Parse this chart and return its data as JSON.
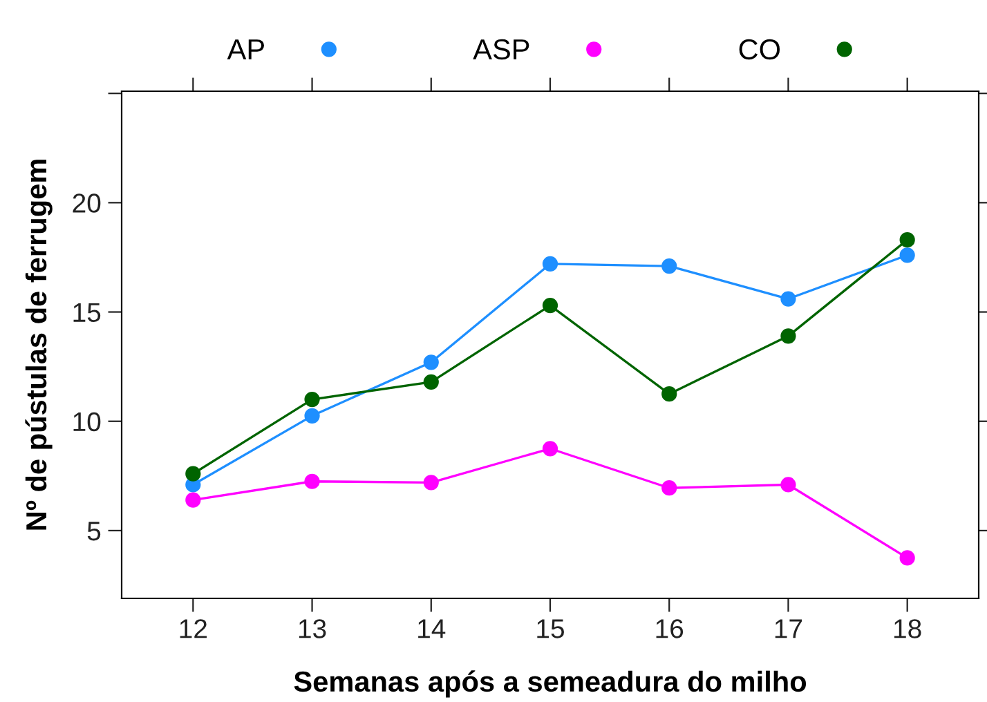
{
  "chart_data": {
    "type": "line",
    "xlabel": "Semanas após a semeadura do milho",
    "ylabel": "Nº de pústulas de ferrugem",
    "x": [
      12,
      13,
      14,
      15,
      16,
      17,
      18
    ],
    "series": [
      {
        "name": "AP",
        "color": "#1e8fff",
        "values": [
          7.1,
          10.25,
          12.7,
          17.2,
          17.1,
          15.6,
          17.6
        ]
      },
      {
        "name": "ASP",
        "color": "#ff00ff",
        "values": [
          6.4,
          7.25,
          7.2,
          8.75,
          6.95,
          7.1,
          3.75
        ]
      },
      {
        "name": "CO",
        "color": "#006400",
        "values": [
          7.6,
          11.0,
          11.8,
          15.3,
          11.25,
          13.9,
          18.3
        ]
      }
    ],
    "xlim": [
      11.4,
      18.6
    ],
    "xticks": [
      12,
      13,
      14,
      15,
      16,
      17,
      18
    ],
    "ylim": [
      1.9,
      25.1
    ],
    "yticks": [
      5,
      10,
      15,
      20,
      {
        "value": 25,
        "label": null
      }
    ],
    "grid": false,
    "legend": "top",
    "marker": "circle",
    "line_style": "solid"
  }
}
